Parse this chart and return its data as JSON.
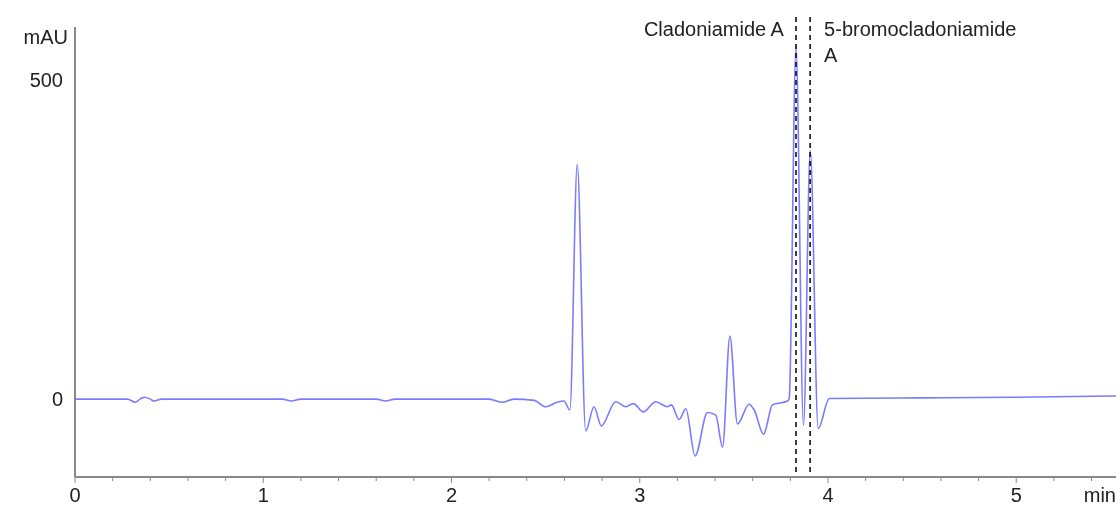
{
  "chart_data": {
    "type": "line",
    "xlabel": "min",
    "ylabel": "mAU",
    "xlim": [
      0,
      5.53
    ],
    "ylim": [
      -122,
      583
    ],
    "xticks": [
      0,
      {
        "value": 0.2,
        "label": null
      },
      {
        "value": 0.4,
        "label": null
      },
      {
        "value": 0.6,
        "label": null
      },
      {
        "value": 0.8,
        "label": null
      },
      1,
      {
        "value": 1.2,
        "label": null
      },
      {
        "value": 1.4,
        "label": null
      },
      {
        "value": 1.6,
        "label": null
      },
      {
        "value": 1.8,
        "label": null
      },
      2,
      {
        "value": 2.2,
        "label": null
      },
      {
        "value": 2.4,
        "label": null
      },
      {
        "value": 2.6,
        "label": null
      },
      {
        "value": 2.8,
        "label": null
      },
      3,
      {
        "value": 3.2,
        "label": null
      },
      {
        "value": 3.4,
        "label": null
      },
      {
        "value": 3.6,
        "label": null
      },
      {
        "value": 3.8,
        "label": null
      },
      4,
      {
        "value": 4.2,
        "label": null
      },
      {
        "value": 4.4,
        "label": null
      },
      {
        "value": 4.6,
        "label": null
      },
      {
        "value": 4.8,
        "label": null
      },
      5,
      {
        "value": 5.2,
        "label": null
      },
      {
        "value": 5.4,
        "label": null
      }
    ],
    "yticks": [
      0,
      500
    ],
    "grid": false,
    "marker": "none",
    "line_style": "solid",
    "ref_lines": [
      {
        "axis": "x",
        "value": 3.83,
        "label": "Cladoniamide A",
        "color": "#000000",
        "line_style": "dashed"
      },
      {
        "axis": "x",
        "value": 3.905,
        "label": "5-bromocladoniamide A",
        "color": "#000000",
        "line_style": "dashed"
      }
    ],
    "series": [
      {
        "color": "#7b7bff",
        "x": [
          0,
          0.28,
          0.32,
          0.35,
          0.37,
          0.4,
          0.42,
          0.46,
          1.1,
          1.15,
          1.2,
          1.6,
          1.65,
          1.7,
          2.2,
          2.27,
          2.33,
          2.44,
          2.5,
          2.56,
          2.597,
          2.629,
          2.668,
          2.713,
          2.757,
          2.796,
          2.872,
          2.926,
          2.966,
          3.019,
          3.085,
          3.147,
          3.168,
          3.209,
          3.245,
          3.294,
          3.36,
          3.404,
          3.44,
          3.479,
          3.519,
          3.581,
          3.608,
          3.658,
          3.705,
          3.785,
          3.794,
          3.83,
          3.87,
          3.906,
          3.948,
          4.007,
          4.5,
          5.0,
          5.53
        ],
        "values": [
          0,
          0,
          -5,
          1,
          3,
          0,
          -3,
          0,
          0,
          -3,
          0,
          0,
          -3,
          0,
          0,
          -5,
          0,
          -2,
          -12,
          -5,
          -3,
          -17,
          368,
          -50,
          -12,
          -42,
          -4,
          -12,
          -7,
          -20,
          -4,
          -12,
          -9,
          -32,
          -15,
          -89,
          -21,
          -25,
          -75,
          99,
          -39,
          -8,
          -17,
          -55,
          -9,
          -3,
          1,
          552,
          -41,
          390,
          -46,
          1,
          2,
          3,
          5
        ]
      }
    ]
  }
}
